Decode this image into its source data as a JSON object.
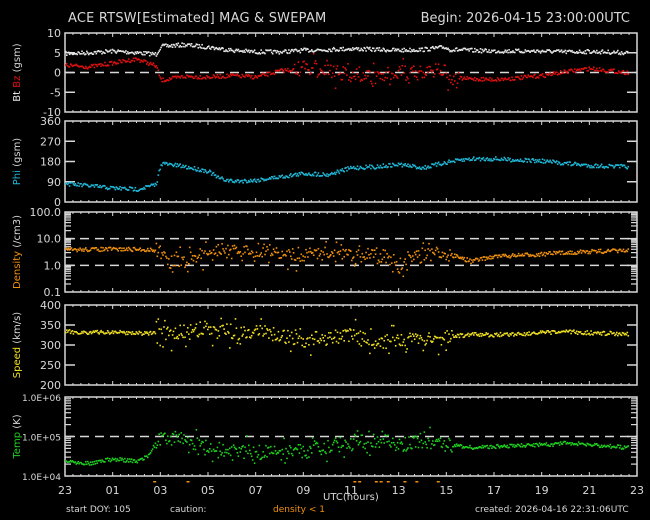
{
  "header": {
    "title": "ACE RTSW[Estimated] MAG & SWEPAM",
    "begin": "Begin: 2026-04-15 23:00:00UTC"
  },
  "footer": {
    "start_doy": "start DOY: 105",
    "caution_label": "caution:",
    "caution_value": "density < 1",
    "created": "created: 2026-04-16 22:31:06UTC",
    "xlabel": "UTC(hours)"
  },
  "colors": {
    "background": "#000000",
    "axis": "#d8d8d8",
    "bt": "#e6e6e6",
    "bz": "#e01010",
    "phi": "#20b8d8",
    "density": "#f09010",
    "speed": "#f0e020",
    "temp": "#20d020"
  },
  "chart_data": [
    {
      "type": "scatter",
      "title": "Bt Bz (gsm)",
      "ylabel": "Bt Bz (gsm)",
      "ylim": [
        -10,
        10
      ],
      "yticks": [
        "10",
        "5",
        "0",
        "-5",
        "-10"
      ],
      "reference_lines": [
        0
      ],
      "x_hours": [
        0,
        1,
        2,
        3,
        3.8,
        4,
        5,
        6,
        7,
        8,
        9,
        10,
        11,
        12,
        13,
        14,
        15,
        15.9,
        16.1,
        17,
        18,
        19,
        20,
        21,
        22,
        23.5
      ],
      "series": [
        {
          "name": "Bt",
          "values": [
            5,
            5.2,
            5.6,
            5.2,
            4.8,
            6.8,
            7.2,
            6.6,
            5.8,
            5.4,
            5.4,
            5.8,
            6.0,
            6.2,
            6.0,
            5.8,
            6.0,
            6.6,
            6.0,
            5.8,
            5.6,
            5.6,
            5.6,
            5.4,
            5.5,
            5.2
          ]
        },
        {
          "name": "Bz",
          "values": [
            2.0,
            1.6,
            2.6,
            3.6,
            1.8,
            -1.8,
            -0.8,
            -1.0,
            -0.6,
            -1.0,
            0.6,
            1.2,
            0.4,
            -0.2,
            -0.8,
            0.4,
            0.0,
            1.2,
            -1.2,
            -1.4,
            -1.6,
            -1.2,
            -0.6,
            0.4,
            1.2,
            0.2
          ]
        }
      ]
    },
    {
      "type": "scatter",
      "title": "Phi (gsm)",
      "ylabel": "Phi (gsm)",
      "ylim": [
        0,
        360
      ],
      "yticks": [
        "360",
        "270",
        "180",
        "90",
        "0"
      ],
      "x_hours": [
        0,
        1,
        2,
        3,
        3.8,
        4,
        5,
        6,
        6.4,
        7,
        8,
        9,
        10,
        11,
        12,
        13,
        14,
        15,
        16,
        17,
        18,
        19,
        20,
        21,
        22,
        23.5
      ],
      "series": [
        {
          "name": "Phi",
          "values": [
            85,
            75,
            65,
            60,
            80,
            175,
            160,
            140,
            110,
            95,
            100,
            115,
            130,
            125,
            155,
            160,
            170,
            155,
            180,
            195,
            195,
            190,
            185,
            175,
            165,
            160
          ]
        }
      ]
    },
    {
      "type": "scatter",
      "title": "Density (/cm3)",
      "ylabel": "Density (/cm3)",
      "yscale": "log",
      "ylim": [
        0.1,
        100
      ],
      "yticks": [
        "100.0",
        "10.0",
        "1.0",
        "0.1"
      ],
      "reference_lines": [
        1,
        10
      ],
      "x_hours": [
        0,
        1,
        2,
        3,
        3.9,
        4.2,
        5,
        6,
        7,
        8,
        9,
        10,
        11,
        12,
        13,
        14,
        15,
        16,
        17,
        18,
        19,
        20,
        21,
        22,
        23.5
      ],
      "series": [
        {
          "name": "Density",
          "values": [
            4,
            4.2,
            4.3,
            4.2,
            4.0,
            1.6,
            1.4,
            3.0,
            3.5,
            4.0,
            3.2,
            2.6,
            3.0,
            2.2,
            2.8,
            1.0,
            2.6,
            2.8,
            1.5,
            2.3,
            2.5,
            2.8,
            3.2,
            3.5,
            3.8
          ]
        }
      ]
    },
    {
      "type": "scatter",
      "title": "Speed (km/s)",
      "ylabel": "Speed (km/s)",
      "ylim": [
        200,
        400
      ],
      "yticks": [
        "400",
        "350",
        "300",
        "250",
        "200"
      ],
      "x_hours": [
        0,
        1,
        2,
        3,
        4,
        5,
        6,
        7,
        8,
        9,
        10,
        11,
        12,
        13,
        14,
        15,
        16,
        17,
        18,
        19,
        20,
        21,
        22,
        23.5
      ],
      "series": [
        {
          "name": "Speed",
          "values": [
            335,
            333,
            334,
            332,
            330,
            335,
            338,
            332,
            335,
            325,
            315,
            320,
            330,
            305,
            318,
            310,
            322,
            328,
            327,
            330,
            332,
            335,
            332,
            330
          ]
        }
      ]
    },
    {
      "type": "scatter",
      "title": "Temp (K)",
      "ylabel": "Temp (K)",
      "yscale": "log",
      "ylim": [
        10000,
        1000000
      ],
      "yticks": [
        "1.0E+06",
        "1.0E+05",
        "1.0E+04"
      ],
      "reference_lines": [
        100000
      ],
      "x_hours": [
        0,
        1,
        2,
        3,
        3.5,
        4,
        5,
        6,
        7,
        8,
        9,
        10,
        11,
        12,
        13,
        14,
        15,
        16,
        17,
        18,
        19,
        20,
        21,
        22,
        23.5
      ],
      "series": [
        {
          "name": "Temp",
          "values": [
            25000,
            22000,
            28000,
            24000,
            35000,
            90000,
            75000,
            55000,
            45000,
            42000,
            40000,
            45000,
            60000,
            70000,
            85000,
            65000,
            75000,
            65000,
            55000,
            58000,
            60000,
            65000,
            70000,
            65000,
            55000
          ]
        }
      ]
    }
  ],
  "xaxis": {
    "ticks": [
      "23",
      "01",
      "03",
      "05",
      "07",
      "09",
      "11",
      "13",
      "15",
      "17",
      "19",
      "21",
      "23"
    ],
    "range_hours": [
      0,
      24
    ]
  }
}
